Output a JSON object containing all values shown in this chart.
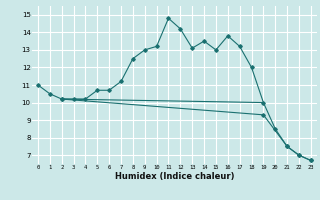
{
  "xlabel": "Humidex (Indice chaleur)",
  "bg_color": "#cce8e8",
  "grid_color": "#ffffff",
  "line_color": "#1a7070",
  "xlim": [
    -0.5,
    23.5
  ],
  "ylim": [
    6.5,
    15.5
  ],
  "xticks": [
    0,
    1,
    2,
    3,
    4,
    5,
    6,
    7,
    8,
    9,
    10,
    11,
    12,
    13,
    14,
    15,
    16,
    17,
    18,
    19,
    20,
    21,
    22,
    23
  ],
  "yticks": [
    7,
    8,
    9,
    10,
    11,
    12,
    13,
    14,
    15
  ],
  "curve1_x": [
    0,
    1,
    2,
    3,
    4,
    5,
    6,
    7,
    8,
    9,
    10,
    11,
    12,
    13,
    14,
    15,
    16,
    17,
    18,
    19,
    20,
    21,
    22,
    23
  ],
  "curve1_y": [
    11.0,
    10.5,
    10.2,
    10.2,
    10.2,
    10.7,
    10.7,
    11.2,
    12.5,
    13.0,
    13.2,
    14.8,
    14.2,
    13.1,
    13.5,
    13.0,
    13.8,
    13.2,
    12.0,
    10.0,
    8.5,
    7.5,
    7.0,
    6.7
  ],
  "curve2_x": [
    2,
    19
  ],
  "curve2_y": [
    10.2,
    10.0
  ],
  "curve3_x": [
    2,
    19,
    21,
    22,
    23
  ],
  "curve3_y": [
    10.2,
    9.3,
    7.5,
    7.0,
    6.7
  ]
}
